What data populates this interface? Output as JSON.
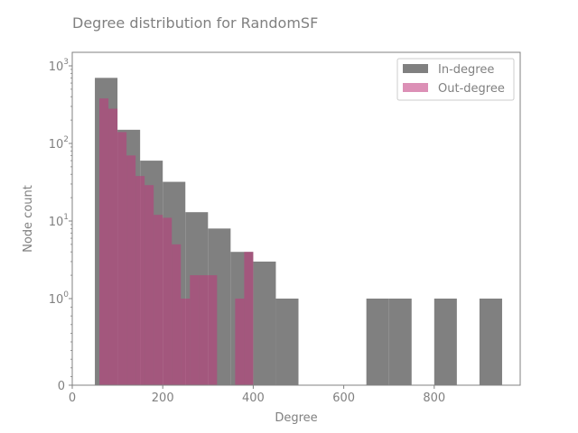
{
  "chart_data": {
    "type": "bar",
    "title": "Degree distribution for RandomSF",
    "xlabel": "Degree",
    "ylabel": "Node count",
    "xlim": [
      0,
      990
    ],
    "x_ticks": [
      0,
      200,
      400,
      600,
      800
    ],
    "y_scale": "symlog",
    "y_ticks": [
      {
        "value": 0,
        "base": "0",
        "exp": ""
      },
      {
        "value": 1,
        "base": "10",
        "exp": "0"
      },
      {
        "value": 10,
        "base": "10",
        "exp": "1"
      },
      {
        "value": 100,
        "base": "10",
        "exp": "2"
      },
      {
        "value": 1000,
        "base": "10",
        "exp": "3"
      }
    ],
    "legend_position": "top-right",
    "grid": false,
    "series": [
      {
        "name": "In-degree",
        "color": "#808080",
        "bins": [
          {
            "x0": 50,
            "x1": 100,
            "count": 700
          },
          {
            "x0": 100,
            "x1": 150,
            "count": 150
          },
          {
            "x0": 150,
            "x1": 200,
            "count": 60
          },
          {
            "x0": 200,
            "x1": 250,
            "count": 32
          },
          {
            "x0": 250,
            "x1": 300,
            "count": 13
          },
          {
            "x0": 300,
            "x1": 350,
            "count": 8
          },
          {
            "x0": 350,
            "x1": 400,
            "count": 4
          },
          {
            "x0": 400,
            "x1": 450,
            "count": 3
          },
          {
            "x0": 450,
            "x1": 500,
            "count": 1
          },
          {
            "x0": 650,
            "x1": 700,
            "count": 1
          },
          {
            "x0": 700,
            "x1": 750,
            "count": 1
          },
          {
            "x0": 800,
            "x1": 850,
            "count": 1
          },
          {
            "x0": 900,
            "x1": 950,
            "count": 1
          }
        ]
      },
      {
        "name": "Out-degree",
        "color": "#c0357a",
        "bins": [
          {
            "x0": 60,
            "x1": 80,
            "count": 380
          },
          {
            "x0": 80,
            "x1": 100,
            "count": 280
          },
          {
            "x0": 100,
            "x1": 120,
            "count": 140
          },
          {
            "x0": 120,
            "x1": 140,
            "count": 70
          },
          {
            "x0": 140,
            "x1": 160,
            "count": 38
          },
          {
            "x0": 160,
            "x1": 180,
            "count": 29
          },
          {
            "x0": 180,
            "x1": 200,
            "count": 12
          },
          {
            "x0": 200,
            "x1": 220,
            "count": 11
          },
          {
            "x0": 220,
            "x1": 240,
            "count": 5
          },
          {
            "x0": 240,
            "x1": 260,
            "count": 1
          },
          {
            "x0": 260,
            "x1": 280,
            "count": 2
          },
          {
            "x0": 280,
            "x1": 300,
            "count": 2
          },
          {
            "x0": 300,
            "x1": 320,
            "count": 2
          },
          {
            "x0": 360,
            "x1": 380,
            "count": 1
          },
          {
            "x0": 380,
            "x1": 400,
            "count": 4
          }
        ]
      }
    ]
  }
}
